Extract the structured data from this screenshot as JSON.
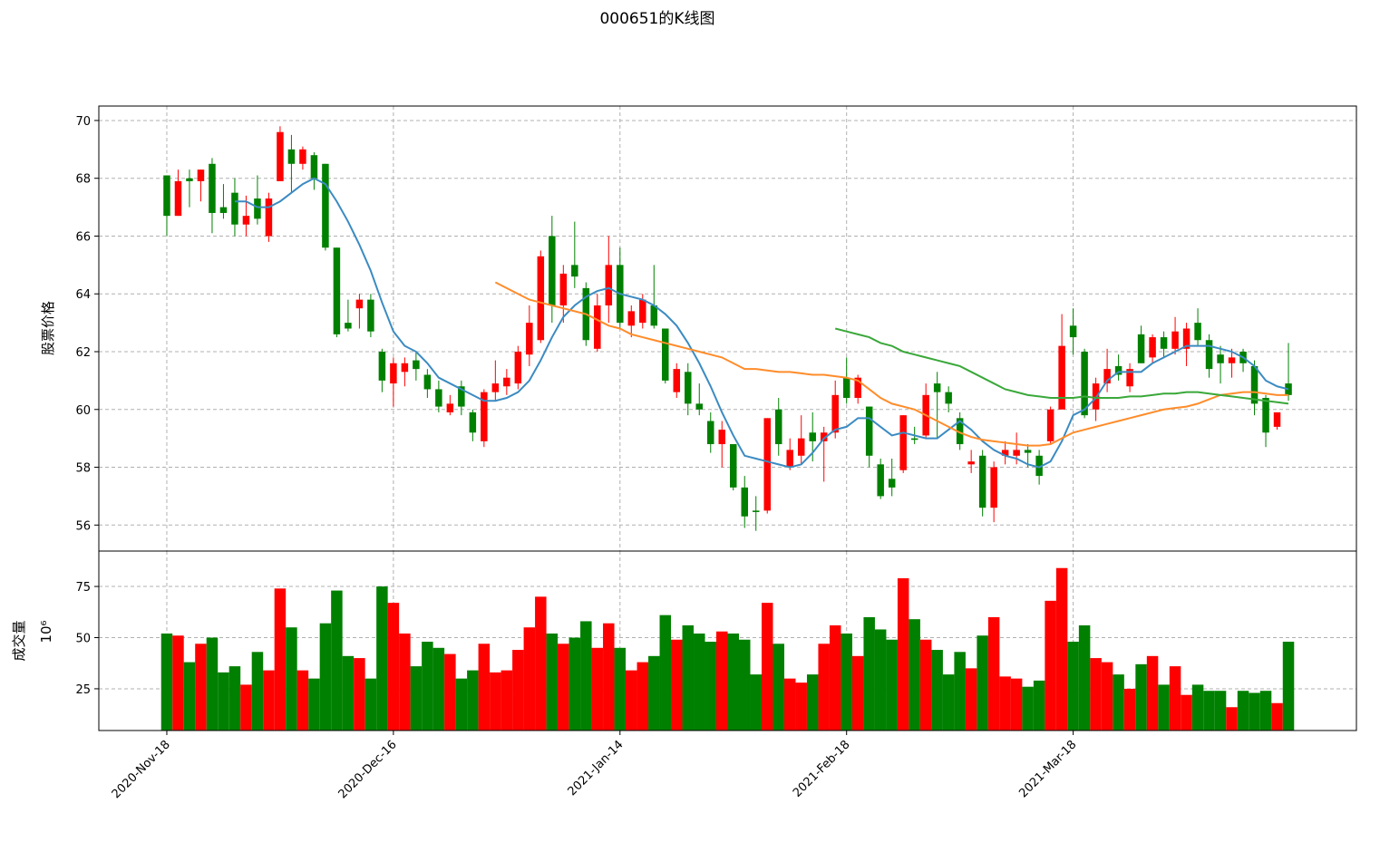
{
  "chart_data": {
    "type": "candlestick",
    "title": "000651的K线图",
    "ylabel": "股票价格",
    "grid": true,
    "up_color": "#ff0000",
    "down_color": "#008000",
    "categories": [
      "2020-Nov-18",
      null,
      null,
      null,
      null,
      null,
      null,
      null,
      null,
      null,
      null,
      null,
      null,
      null,
      null,
      null,
      null,
      null,
      null,
      null,
      "2020-Dec-16",
      null,
      null,
      null,
      null,
      null,
      null,
      null,
      null,
      null,
      null,
      null,
      null,
      null,
      null,
      null,
      null,
      null,
      null,
      null,
      "2021-Jan-14",
      null,
      null,
      null,
      null,
      null,
      null,
      null,
      null,
      null,
      null,
      null,
      null,
      null,
      null,
      null,
      null,
      null,
      null,
      null,
      "2021-Feb-18",
      null,
      null,
      null,
      null,
      null,
      null,
      null,
      null,
      null,
      null,
      null,
      null,
      null,
      null,
      null,
      null,
      null,
      null,
      null,
      "2021-Mar-18",
      null,
      null,
      null,
      null,
      null,
      null,
      null,
      null,
      null,
      null,
      null,
      null,
      null,
      null,
      null,
      null,
      null,
      null,
      null
    ],
    "xlim": [
      -6,
      105
    ],
    "ylim": [
      55.1,
      70.5
    ],
    "yticks": [
      56,
      58,
      60,
      62,
      64,
      66,
      68,
      70
    ],
    "open": [
      68.1,
      66.7,
      68.0,
      67.9,
      68.5,
      67.0,
      67.5,
      66.4,
      67.3,
      66.0,
      67.9,
      69.0,
      68.5,
      68.8,
      68.5,
      65.6,
      63.0,
      63.5,
      63.8,
      62.0,
      60.9,
      61.3,
      61.7,
      61.2,
      60.7,
      59.9,
      60.8,
      59.9,
      58.9,
      60.6,
      60.8,
      60.9,
      61.9,
      62.4,
      66.0,
      63.6,
      65.0,
      64.2,
      62.1,
      63.6,
      65.0,
      62.9,
      63.0,
      63.6,
      62.8,
      60.6,
      61.3,
      60.2,
      59.6,
      58.8,
      58.8,
      57.3,
      56.5,
      56.5,
      60.0,
      58.0,
      58.4,
      59.2,
      58.9,
      59.2,
      61.1,
      60.4,
      60.1,
      58.1,
      57.6,
      57.9,
      59.0,
      59.1,
      60.9,
      60.6,
      59.7,
      58.1,
      58.4,
      56.6,
      58.4,
      58.4,
      58.6,
      58.4,
      58.9,
      60.0,
      62.9,
      62.0,
      60.0,
      60.9,
      61.5,
      60.8,
      62.6,
      61.8,
      62.5,
      62.1,
      62.1,
      63.0,
      62.4,
      61.9,
      61.6,
      62.0,
      61.5,
      60.4,
      59.4,
      60.9
    ],
    "high": [
      68.1,
      68.3,
      68.3,
      68.3,
      68.7,
      67.8,
      68.0,
      67.4,
      68.1,
      67.5,
      69.8,
      69.5,
      69.1,
      68.9,
      68.5,
      65.6,
      63.8,
      64.0,
      64.0,
      62.1,
      61.8,
      61.8,
      62.0,
      61.4,
      61.0,
      60.5,
      61.0,
      60.0,
      60.7,
      61.7,
      61.4,
      62.2,
      63.6,
      65.5,
      66.7,
      65.0,
      66.5,
      64.4,
      64.0,
      66.0,
      65.6,
      63.6,
      64.0,
      65.0,
      62.8,
      61.6,
      61.6,
      60.9,
      59.9,
      59.6,
      58.8,
      57.7,
      57.0,
      59.7,
      60.4,
      59.0,
      59.8,
      59.9,
      59.4,
      61.0,
      61.8,
      61.2,
      60.1,
      58.3,
      58.3,
      59.8,
      59.4,
      60.9,
      61.3,
      60.8,
      59.9,
      58.6,
      58.6,
      58.2,
      58.9,
      59.2,
      58.8,
      58.6,
      60.1,
      63.3,
      63.5,
      62.1,
      61.1,
      62.1,
      61.9,
      61.6,
      62.9,
      62.6,
      62.7,
      63.2,
      63.0,
      63.5,
      62.6,
      62.2,
      62.1,
      62.1,
      61.7,
      60.5,
      59.9,
      62.3
    ],
    "low": [
      66.0,
      66.7,
      67.0,
      67.2,
      66.1,
      66.6,
      66.0,
      66.0,
      66.4,
      65.8,
      67.9,
      67.5,
      68.3,
      67.6,
      65.5,
      62.5,
      62.7,
      62.8,
      62.5,
      60.6,
      60.1,
      60.8,
      61.0,
      60.4,
      59.9,
      59.8,
      59.8,
      58.9,
      58.7,
      60.3,
      60.5,
      60.7,
      61.5,
      62.3,
      63.0,
      63.0,
      64.2,
      62.2,
      62.0,
      63.0,
      62.8,
      62.5,
      62.8,
      62.8,
      60.9,
      60.4,
      59.8,
      59.8,
      58.5,
      58.0,
      57.2,
      55.9,
      55.8,
      56.4,
      58.4,
      57.9,
      58.1,
      58.2,
      57.5,
      59.0,
      60.2,
      60.2,
      58.0,
      56.9,
      57.0,
      57.8,
      58.8,
      59.0,
      59.0,
      59.9,
      58.6,
      57.8,
      56.3,
      56.1,
      58.1,
      58.1,
      58.0,
      57.4,
      58.8,
      60.0,
      61.9,
      59.7,
      59.6,
      60.6,
      61.0,
      60.6,
      61.6,
      61.6,
      61.8,
      61.9,
      61.5,
      62.2,
      61.1,
      60.9,
      61.1,
      61.3,
      59.8,
      58.7,
      59.3,
      60.3
    ],
    "close": [
      66.7,
      67.9,
      67.9,
      68.3,
      66.8,
      66.8,
      66.4,
      66.7,
      66.6,
      67.3,
      69.6,
      68.5,
      69.0,
      68.0,
      65.6,
      62.6,
      62.8,
      63.8,
      62.7,
      61.0,
      61.6,
      61.6,
      61.4,
      60.7,
      60.1,
      60.2,
      60.1,
      59.2,
      60.6,
      60.9,
      61.1,
      62.0,
      63.0,
      65.3,
      63.6,
      64.7,
      64.6,
      62.4,
      63.6,
      65.0,
      63.0,
      63.4,
      63.8,
      62.9,
      61.0,
      61.4,
      60.2,
      60.0,
      58.8,
      59.3,
      57.3,
      56.3,
      56.45,
      59.7,
      58.8,
      58.6,
      59.0,
      58.9,
      59.2,
      60.5,
      60.4,
      61.1,
      58.4,
      57.0,
      57.3,
      59.8,
      58.95,
      60.5,
      60.6,
      60.2,
      58.8,
      58.2,
      56.6,
      58.0,
      58.6,
      58.6,
      58.5,
      57.7,
      60.0,
      62.2,
      62.5,
      59.8,
      60.9,
      61.4,
      61.2,
      61.4,
      61.6,
      62.5,
      62.1,
      62.7,
      62.8,
      62.4,
      61.4,
      61.6,
      61.8,
      61.6,
      60.2,
      59.2,
      59.9,
      60.5
    ],
    "series": [
      {
        "color": "#3b8bc2",
        "values": [
          null,
          null,
          null,
          null,
          null,
          null,
          67.2,
          67.2,
          67.0,
          67.0,
          67.2,
          67.5,
          67.8,
          68.0,
          67.8,
          67.2,
          66.5,
          65.7,
          64.8,
          63.7,
          62.7,
          62.2,
          62.0,
          61.6,
          61.1,
          60.9,
          60.7,
          60.5,
          60.3,
          60.3,
          60.4,
          60.6,
          61.0,
          61.7,
          62.5,
          63.2,
          63.6,
          63.9,
          64.1,
          64.2,
          64.0,
          63.9,
          63.8,
          63.6,
          63.3,
          62.9,
          62.3,
          61.6,
          60.8,
          59.9,
          59.1,
          58.4,
          58.3,
          58.2,
          58.1,
          58.0,
          58.1,
          58.5,
          59.0,
          59.3,
          59.4,
          59.7,
          59.7,
          59.4,
          59.1,
          59.2,
          59.1,
          59.0,
          59.0,
          59.3,
          59.6,
          59.3,
          58.9,
          58.6,
          58.4,
          58.3,
          58.1,
          58.0,
          58.2,
          58.9,
          59.8,
          60.0,
          60.4,
          61.0,
          61.3,
          61.3,
          61.3,
          61.6,
          61.8,
          62.0,
          62.2,
          62.2,
          62.2,
          62.1,
          62.0,
          61.8,
          61.5,
          61.0,
          60.8,
          60.7
        ]
      },
      {
        "color": "#ff8c2a",
        "values": [
          null,
          null,
          null,
          null,
          null,
          null,
          null,
          null,
          null,
          null,
          null,
          null,
          null,
          null,
          null,
          null,
          null,
          null,
          null,
          null,
          null,
          null,
          null,
          null,
          null,
          null,
          null,
          null,
          null,
          64.4,
          64.2,
          64.0,
          63.8,
          63.7,
          63.6,
          63.5,
          63.4,
          63.3,
          63.1,
          62.9,
          62.8,
          62.6,
          62.5,
          62.4,
          62.3,
          62.2,
          62.1,
          62.0,
          61.9,
          61.8,
          61.6,
          61.4,
          61.4,
          61.35,
          61.3,
          61.3,
          61.25,
          61.2,
          61.2,
          61.15,
          61.1,
          61.0,
          60.7,
          60.4,
          60.2,
          60.1,
          60.0,
          59.8,
          59.6,
          59.4,
          59.2,
          59.05,
          58.95,
          58.9,
          58.85,
          58.8,
          58.75,
          58.75,
          58.8,
          59.0,
          59.2,
          59.3,
          59.4,
          59.5,
          59.6,
          59.7,
          59.8,
          59.9,
          60.0,
          60.05,
          60.1,
          60.2,
          60.35,
          60.5,
          60.55,
          60.6,
          60.6,
          60.55,
          60.5,
          60.5
        ]
      },
      {
        "color": "#3aa83a",
        "values": [
          null,
          null,
          null,
          null,
          null,
          null,
          null,
          null,
          null,
          null,
          null,
          null,
          null,
          null,
          null,
          null,
          null,
          null,
          null,
          null,
          null,
          null,
          null,
          null,
          null,
          null,
          null,
          null,
          null,
          null,
          null,
          null,
          null,
          null,
          null,
          null,
          null,
          null,
          null,
          null,
          null,
          null,
          null,
          null,
          null,
          null,
          null,
          null,
          null,
          null,
          null,
          null,
          null,
          null,
          null,
          null,
          null,
          null,
          null,
          62.8,
          62.7,
          62.6,
          62.5,
          62.3,
          62.2,
          62.0,
          61.9,
          61.8,
          61.7,
          61.6,
          61.5,
          61.3,
          61.1,
          60.9,
          60.7,
          60.6,
          60.5,
          60.45,
          60.4,
          60.4,
          60.4,
          60.45,
          60.4,
          60.4,
          60.4,
          60.45,
          60.45,
          60.5,
          60.55,
          60.55,
          60.6,
          60.6,
          60.55,
          60.5,
          60.45,
          60.4,
          60.35,
          60.3,
          60.25,
          60.2
        ]
      }
    ],
    "volume": {
      "ylabel": "成交量",
      "y_offset_label": "10⁶",
      "ylim": [
        4.6,
        92.3
      ],
      "yticks": [
        25,
        50,
        75
      ],
      "values": [
        52,
        51,
        38,
        47,
        50,
        33,
        36,
        27,
        43,
        34,
        74,
        55,
        34,
        30,
        57,
        73,
        41,
        40,
        30,
        75,
        67,
        52,
        36,
        48,
        45,
        42,
        30,
        34,
        47,
        33,
        34,
        44,
        55,
        70,
        52,
        47,
        50,
        58,
        45,
        57,
        45,
        34,
        38,
        41,
        61,
        49,
        56,
        52,
        48,
        53,
        52,
        49,
        32,
        67,
        47,
        30,
        28,
        32,
        47,
        56,
        52,
        41,
        60,
        54,
        49,
        79,
        59,
        49,
        44,
        32,
        43,
        35,
        51,
        60,
        31,
        30,
        26,
        29,
        68,
        84,
        48,
        56,
        40,
        38,
        32,
        25,
        37,
        41,
        27,
        36,
        22,
        27,
        24,
        24,
        16,
        24,
        23,
        24,
        18,
        48
      ]
    }
  }
}
